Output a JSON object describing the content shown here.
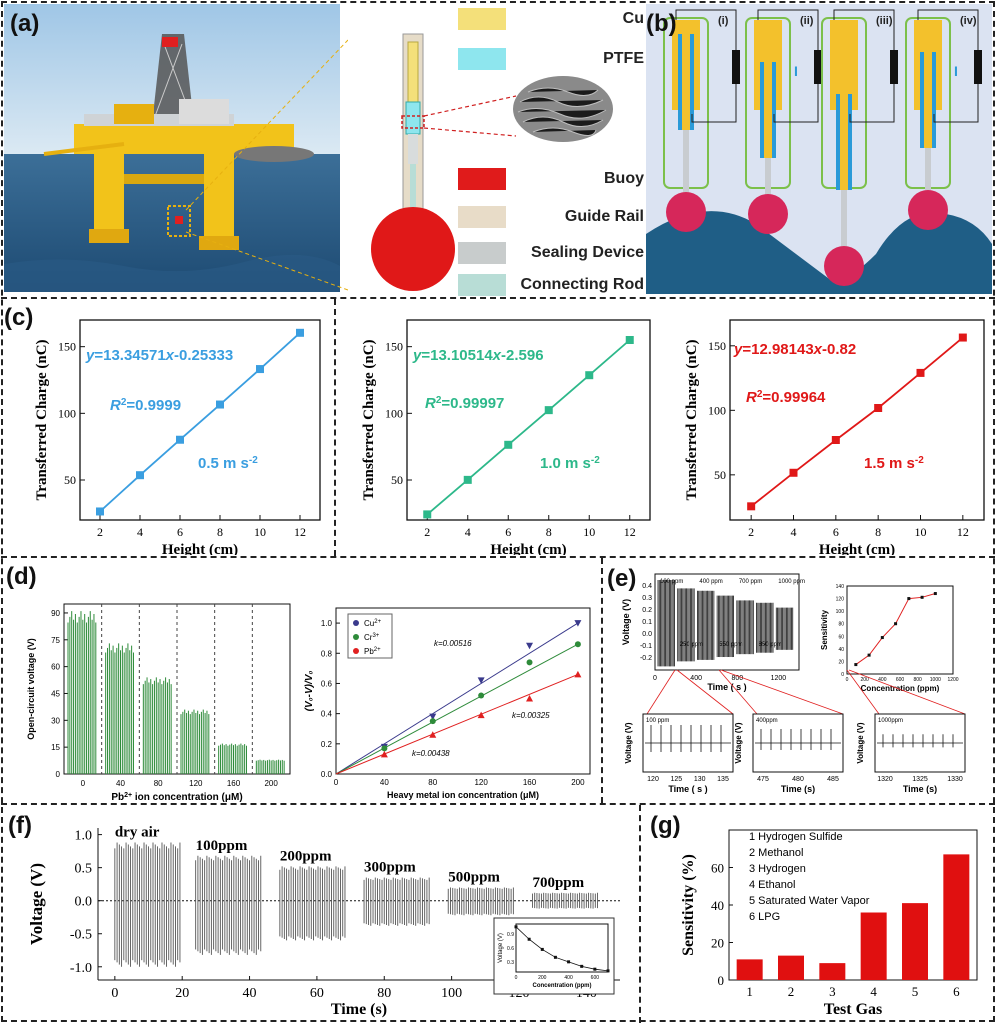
{
  "panels": {
    "a": {
      "label": "(a)",
      "legend": [
        {
          "name": "Cu",
          "color": "#f4e07a"
        },
        {
          "name": "PTFE",
          "color": "#8ee6ee"
        },
        {
          "name": "Buoy",
          "color": "#e01b1b"
        },
        {
          "name": "Guide Rail",
          "color": "#e8dcc8"
        },
        {
          "name": "Sealing Device",
          "color": "#c8cccc"
        },
        {
          "name": "Connecting Rod",
          "color": "#b8ddd6"
        }
      ]
    },
    "b": {
      "label": "(b)",
      "stages": [
        "(i)",
        "(ii)",
        "(iii)",
        "(iv)"
      ],
      "current_symbol": "I"
    },
    "c": {
      "label": "(c)"
    },
    "d": {
      "label": "(d)"
    },
    "e": {
      "label": "(e)"
    },
    "f": {
      "label": "(f)"
    },
    "g": {
      "label": "(g)"
    }
  },
  "chart_data": [
    {
      "id": "c1",
      "type": "scatter",
      "x": [
        2,
        4,
        6,
        8,
        10,
        12
      ],
      "y": [
        26.4,
        53.6,
        80.2,
        106.6,
        133.2,
        160.4
      ],
      "xlabel": "Height (cm)",
      "ylabel": "Transferred Charge (nC)",
      "xlim": [
        1,
        13
      ],
      "ylim": [
        20,
        170
      ],
      "xticks": [
        2,
        4,
        6,
        8,
        10,
        12
      ],
      "yticks": [
        50,
        100,
        150
      ],
      "color": "#3a9ee0",
      "eq_y": "y",
      "eq_rest": "=13.34571",
      "eq_x": "x",
      "eq_tail": "-0.25333",
      "r2_pre": "R",
      "r2_sup": "2",
      "r2_val": "=0.9999",
      "accel": "0.5 m s",
      "accel_sup": "-2"
    },
    {
      "id": "c2",
      "type": "scatter",
      "x": [
        2,
        4,
        6,
        8,
        10,
        12
      ],
      "y": [
        24.2,
        50.1,
        76.4,
        102.4,
        128.6,
        155.0
      ],
      "xlabel": "Height (cm)",
      "ylabel": "Transferred Charge (nC)",
      "xlim": [
        1,
        13
      ],
      "ylim": [
        20,
        170
      ],
      "xticks": [
        2,
        4,
        6,
        8,
        10,
        12
      ],
      "yticks": [
        50,
        100,
        150
      ],
      "color": "#2db88a",
      "eq_y": "y",
      "eq_rest": "=13.10514",
      "eq_x": "x",
      "eq_tail": "-2.596",
      "r2_pre": "R",
      "r2_sup": "2",
      "r2_val": "=0.99997",
      "accel": "1.0 m s",
      "accel_sup": "-2"
    },
    {
      "id": "c3",
      "type": "scatter",
      "x": [
        2,
        4,
        6,
        8,
        10,
        12
      ],
      "y": [
        25.6,
        51.6,
        77.0,
        101.8,
        129.0,
        156.4
      ],
      "xlabel": "Height (cm)",
      "ylabel": "Transferred Charge (nC)",
      "xlim": [
        1,
        13
      ],
      "ylim": [
        15,
        170
      ],
      "xticks": [
        2,
        4,
        6,
        8,
        10,
        12
      ],
      "yticks": [
        50,
        100,
        150
      ],
      "color": "#e01818",
      "eq_y": "y",
      "eq_rest": "=12.98143",
      "eq_x": "x",
      "eq_tail": "-0.82",
      "r2_pre": "R",
      "r2_sup": "2",
      "r2_val": "=0.99964",
      "accel": "1.5 m s",
      "accel_sup": "-2"
    },
    {
      "id": "d1",
      "type": "bar",
      "categories": [
        "0",
        "40",
        "80",
        "120",
        "160",
        "200"
      ],
      "values": [
        91,
        73,
        54,
        36,
        17,
        8
      ],
      "xlabel": "Pb",
      "xlabel_sup": "2+",
      "xlabel_tail": " ion concentration (μM)",
      "ylabel": "Open-circuit voltage (V)",
      "ylim": [
        0,
        95
      ],
      "yticks": [
        0,
        15,
        30,
        45,
        60,
        75,
        90
      ],
      "color": "#2e8b3a"
    },
    {
      "id": "d2",
      "type": "line",
      "x": [
        0,
        40,
        80,
        120,
        160,
        200
      ],
      "series": [
        {
          "name": "Cu",
          "sup": "2+",
          "color": "#3a3a8c",
          "marker": "tri-down",
          "values": [
            0.0,
            0.18,
            0.38,
            0.62,
            0.85,
            1.0
          ],
          "slope": "k=0.00516"
        },
        {
          "name": "Cr",
          "sup": "3+",
          "color": "#2e8b3a",
          "marker": "circle",
          "values": [
            0.0,
            0.17,
            0.35,
            0.52,
            0.74,
            0.86
          ],
          "slope": "k=0.00438"
        },
        {
          "name": "Pb",
          "sup": "2+",
          "color": "#e02020",
          "marker": "tri-up",
          "values": [
            0.0,
            0.13,
            0.26,
            0.39,
            0.5,
            0.66
          ],
          "slope": "k=0.00325"
        }
      ],
      "xlabel": "Heavy metal ion concentration (μM)",
      "ylabel": "(V₀-V)/V₀",
      "xlim": [
        0,
        210
      ],
      "ylim": [
        0,
        1.1
      ],
      "xticks": [
        0,
        40,
        80,
        120,
        160,
        200
      ],
      "yticks": [
        0.0,
        0.2,
        0.4,
        0.6,
        0.8,
        1.0
      ]
    },
    {
      "id": "e_main",
      "type": "line",
      "segments": [
        {
          "label": "100 ppm",
          "amp": 0.45
        },
        {
          "label": "250 ppm",
          "amp": 0.38
        },
        {
          "label": "400 ppm",
          "amp": 0.36
        },
        {
          "label": "550 ppm",
          "amp": 0.32
        },
        {
          "label": "700 ppm",
          "amp": 0.28
        },
        {
          "label": "850 ppm",
          "amp": 0.26
        },
        {
          "label": "1000 ppm",
          "amp": 0.22
        }
      ],
      "xlabel": "Time ( s )",
      "ylabel": "Voltage (V)",
      "xlim": [
        0,
        1400
      ],
      "ylim": [
        -0.3,
        0.5
      ],
      "xticks": [
        0,
        400,
        800,
        1200
      ],
      "yticks": [
        -0.2,
        -0.1,
        0.0,
        0.1,
        0.2,
        0.3,
        0.4
      ]
    },
    {
      "id": "e_sens",
      "type": "scatter",
      "x": [
        100,
        250,
        400,
        550,
        700,
        850,
        1000
      ],
      "y": [
        15,
        30,
        58,
        80,
        120,
        122,
        128
      ],
      "xlabel": "Concentration (ppm)",
      "ylabel": "Sensitivity",
      "xlim": [
        0,
        1200
      ],
      "ylim": [
        0,
        140
      ],
      "xticks": [
        0,
        200,
        400,
        600,
        800,
        1000,
        1200
      ],
      "yticks": [
        0,
        20,
        40,
        60,
        80,
        100,
        120,
        140
      ],
      "color": "#e02020"
    },
    {
      "id": "e_z1",
      "type": "line",
      "tag": "100 ppm",
      "xlabel": "Time ( s )",
      "ylabel": "Voltage (V)",
      "xticks": [
        "120",
        "125",
        "130",
        "135"
      ],
      "yticks": [
        "0.0",
        "0.2",
        "0.4"
      ],
      "amp": 0.45
    },
    {
      "id": "e_z2",
      "type": "line",
      "tag": "400ppm",
      "xlabel": "Time (s)",
      "ylabel": "Voltage (V)",
      "xticks": [
        "475",
        "480",
        "485"
      ],
      "yticks": [
        "-0.2",
        "0.0",
        "0.2",
        "0.4"
      ],
      "amp": 0.35
    },
    {
      "id": "e_z3",
      "type": "line",
      "tag": "1000ppm",
      "xlabel": "Time (s)",
      "ylabel": "Voltage (V)",
      "xticks": [
        "1320",
        "1325",
        "1330"
      ],
      "yticks": [
        "-0.2",
        "0.0",
        "0.2"
      ],
      "amp": 0.22
    },
    {
      "id": "f_main",
      "type": "line",
      "segments": [
        {
          "label": "dry air",
          "amp_hi": 0.88,
          "amp_lo": -1.0,
          "t0": 0,
          "t1": 20
        },
        {
          "label": "100ppm",
          "amp_hi": 0.68,
          "amp_lo": -0.82,
          "t0": 24,
          "t1": 44
        },
        {
          "label": "200ppm",
          "amp_hi": 0.52,
          "amp_lo": -0.6,
          "t0": 49,
          "t1": 69
        },
        {
          "label": "300ppm",
          "amp_hi": 0.35,
          "amp_lo": -0.38,
          "t0": 74,
          "t1": 94
        },
        {
          "label": "500ppm",
          "amp_hi": 0.2,
          "amp_lo": -0.22,
          "t0": 99,
          "t1": 119
        },
        {
          "label": "700ppm",
          "amp_hi": 0.12,
          "amp_lo": -0.12,
          "t0": 124,
          "t1": 144
        }
      ],
      "xlabel": "Time (s)",
      "ylabel": "Voltage (V)",
      "xlim": [
        -5,
        150
      ],
      "ylim": [
        -1.2,
        1.1
      ],
      "xticks": [
        0,
        20,
        40,
        60,
        80,
        100,
        120,
        140
      ],
      "yticks": [
        -1.0,
        -0.5,
        0.0,
        0.5,
        1.0
      ]
    },
    {
      "id": "f_inset",
      "type": "line",
      "x": [
        0,
        100,
        200,
        300,
        400,
        500,
        600,
        700
      ],
      "y": [
        0.9,
        0.68,
        0.5,
        0.36,
        0.28,
        0.2,
        0.15,
        0.12
      ],
      "xlabel": "Concentration (ppm)",
      "ylabel": "Voltage (V)",
      "xticks": [
        "0",
        "200",
        "400",
        "600"
      ],
      "yticks": [
        "0.3",
        "0.6",
        "0.9"
      ]
    },
    {
      "id": "g",
      "type": "bar",
      "categories": [
        "1",
        "2",
        "3",
        "4",
        "5",
        "6"
      ],
      "values": [
        11,
        13,
        9,
        36,
        41,
        67
      ],
      "legend": [
        "Hydrogen Sulfide",
        "Methanol",
        "Hydrogen",
        "Ethanol",
        "Saturated Water Vapor",
        "LPG"
      ],
      "xlabel": "Test Gas",
      "ylabel": "Sensitivity (%)",
      "ylim": [
        0,
        80
      ],
      "yticks": [
        0,
        20,
        40,
        60
      ],
      "color": "#e01010"
    }
  ]
}
